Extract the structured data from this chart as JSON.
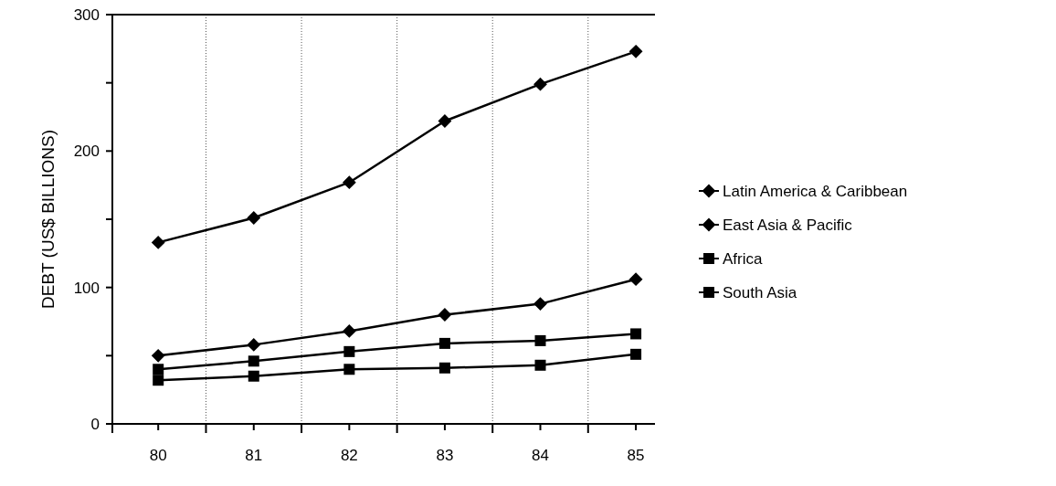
{
  "chart_data": {
    "type": "line",
    "ylabel": "DEBT (US$ BILLIONS)",
    "categories": [
      "80",
      "81",
      "82",
      "83",
      "84",
      "85"
    ],
    "ylim": [
      0,
      300
    ],
    "yticks": [
      0,
      {
        "value": 50,
        "label": null
      },
      100,
      {
        "value": 150,
        "label": null
      },
      200,
      {
        "value": 250,
        "label": null
      },
      300
    ],
    "grid": "x",
    "legend": "right",
    "series": [
      {
        "name": "Latin America & Caribbean",
        "color": "#000000",
        "marker": "diamond",
        "values": [
          133,
          151,
          177,
          222,
          249,
          273
        ]
      },
      {
        "name": "East Asia & Pacific",
        "color": "#000000",
        "marker": "diamond",
        "values": [
          50,
          58,
          68,
          80,
          88,
          106
        ]
      },
      {
        "name": "Africa",
        "color": "#000000",
        "marker": "square",
        "values": [
          40,
          46,
          53,
          59,
          61,
          66
        ]
      },
      {
        "name": "South Asia",
        "color": "#000000",
        "marker": "square",
        "values": [
          32,
          35,
          40,
          41,
          43,
          51
        ]
      }
    ]
  }
}
